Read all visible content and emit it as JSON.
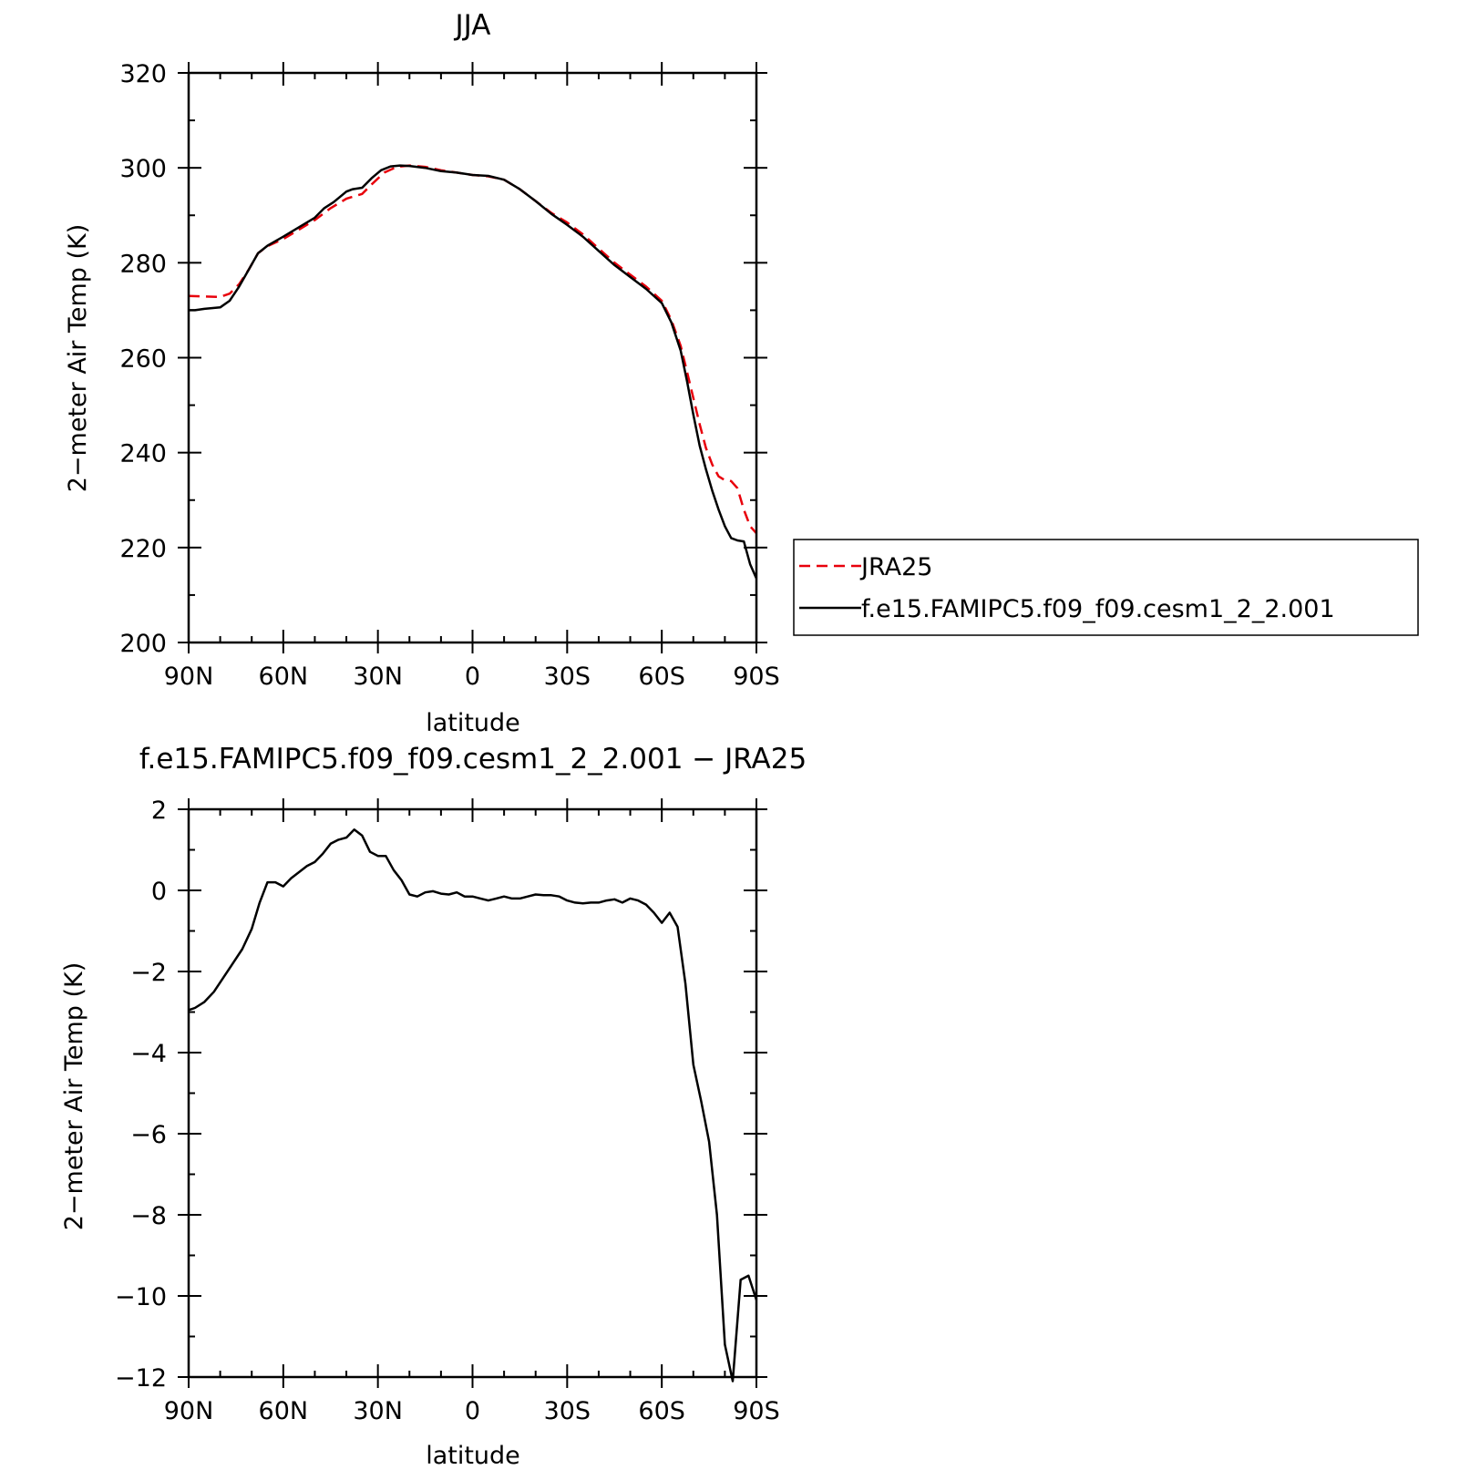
{
  "chart_data": [
    {
      "type": "line",
      "title": "JJA",
      "xlabel": "latitude",
      "ylabel": "2−meter Air Temp (K)",
      "xlim": [
        90,
        -90
      ],
      "ylim": [
        200,
        320
      ],
      "x_ticks": [
        {
          "value": 90,
          "label": "90N"
        },
        {
          "value": 60,
          "label": "60N"
        },
        {
          "value": 30,
          "label": "30N"
        },
        {
          "value": 0,
          "label": "0"
        },
        {
          "value": -30,
          "label": "30S"
        },
        {
          "value": -60,
          "label": "60S"
        },
        {
          "value": -90,
          "label": "90S"
        }
      ],
      "y_ticks": [
        {
          "value": 200,
          "label": "200"
        },
        {
          "value": 220,
          "label": "220"
        },
        {
          "value": 240,
          "label": "240"
        },
        {
          "value": 260,
          "label": "260"
        },
        {
          "value": 280,
          "label": "280"
        },
        {
          "value": 300,
          "label": "300"
        },
        {
          "value": 320,
          "label": "320"
        }
      ],
      "grid": false,
      "legend": "right",
      "series": [
        {
          "name": "JRA25",
          "color": "#e8000b",
          "dash": true,
          "x": [
            90,
            85,
            80,
            77,
            74,
            71,
            68,
            65,
            60,
            55,
            50,
            45,
            40,
            35,
            32,
            28,
            24,
            20,
            15,
            10,
            5,
            0,
            -5,
            -10,
            -15,
            -20,
            -25,
            -30,
            -35,
            -40,
            -45,
            -50,
            -55,
            -60,
            -63,
            -66,
            -68,
            -70,
            -72,
            -74,
            -76,
            -78,
            -80,
            -82,
            -84,
            -86,
            -88,
            -90
          ],
          "y": [
            273,
            272.9,
            272.8,
            273.5,
            275.5,
            278.5,
            282,
            283.5,
            285,
            287,
            289,
            291.5,
            293.5,
            294.5,
            296.5,
            299,
            300.2,
            300.5,
            300.2,
            299.5,
            299,
            298.5,
            298.2,
            297.5,
            295.5,
            293,
            290.5,
            288.5,
            286,
            283,
            280,
            277.5,
            275,
            272,
            268,
            262.5,
            257,
            251.5,
            246,
            241,
            237.5,
            235,
            234.2,
            234,
            232.5,
            228,
            224.5,
            223
          ]
        },
        {
          "name": "f.e15.FAMIPC5.f09_f09.cesm1_2_2.001",
          "color": "#000000",
          "dash": false,
          "x": [
            90,
            88,
            85,
            80,
            77,
            74,
            71,
            68,
            65,
            60,
            55,
            50,
            47,
            44,
            40,
            38,
            35,
            32,
            29,
            26,
            23,
            20,
            15,
            10,
            5,
            0,
            -5,
            -10,
            -15,
            -20,
            -25,
            -30,
            -35,
            -40,
            -45,
            -50,
            -55,
            -60,
            -63,
            -66,
            -68,
            -70,
            -72,
            -74,
            -76,
            -78,
            -80,
            -82,
            -84,
            -86,
            -88,
            -90
          ],
          "y": [
            270,
            270,
            270.3,
            270.6,
            272,
            275,
            278.5,
            282,
            283.6,
            285.5,
            287.5,
            289.5,
            291.5,
            292.8,
            295,
            295.5,
            295.8,
            297.8,
            299.5,
            300.3,
            300.5,
            300.4,
            300,
            299.3,
            299,
            298.5,
            298.3,
            297.5,
            295.5,
            293,
            290.3,
            288,
            285.5,
            282.5,
            279.5,
            277,
            274.5,
            271.5,
            267.5,
            261.5,
            255,
            248,
            241.5,
            236.5,
            232,
            228,
            224.5,
            222,
            221.5,
            221.3,
            216.5,
            213.5
          ]
        }
      ]
    },
    {
      "type": "line",
      "title": "f.e15.FAMIPC5.f09_f09.cesm1_2_2.001 − JRA25",
      "xlabel": "latitude",
      "ylabel": "2−meter Air Temp (K)",
      "xlim": [
        90,
        -90
      ],
      "ylim": [
        -12,
        2
      ],
      "x_ticks": [
        {
          "value": 90,
          "label": "90N"
        },
        {
          "value": 60,
          "label": "60N"
        },
        {
          "value": 30,
          "label": "30N"
        },
        {
          "value": 0,
          "label": "0"
        },
        {
          "value": -30,
          "label": "30S"
        },
        {
          "value": -60,
          "label": "60S"
        },
        {
          "value": -90,
          "label": "90S"
        }
      ],
      "y_ticks": [
        {
          "value": -12,
          "label": "−12"
        },
        {
          "value": -10,
          "label": "−10"
        },
        {
          "value": -8,
          "label": "−8"
        },
        {
          "value": -6,
          "label": "−6"
        },
        {
          "value": -4,
          "label": "−4"
        },
        {
          "value": -2,
          "label": "−2"
        },
        {
          "value": 0,
          "label": "0"
        },
        {
          "value": 2,
          "label": "2"
        }
      ],
      "grid": false,
      "series": [
        {
          "color": "#000000",
          "dash": false,
          "x": [
            90,
            88,
            85,
            82,
            79,
            76,
            73,
            70,
            67.5,
            65,
            62.5,
            60,
            57.5,
            55,
            52.5,
            50,
            47.5,
            45,
            42.5,
            40,
            37.5,
            35,
            32.5,
            30,
            27.5,
            25,
            22.5,
            20,
            17.5,
            15,
            12.5,
            10,
            7.5,
            5,
            2.5,
            0,
            -2.5,
            -5,
            -7.5,
            -10,
            -12.5,
            -15,
            -17.5,
            -20,
            -22.5,
            -25,
            -27.5,
            -30,
            -32.5,
            -35,
            -37.5,
            -40,
            -42.5,
            -45,
            -47.5,
            -50,
            -52.5,
            -55,
            -57.5,
            -60,
            -62.5,
            -65,
            -67.5,
            -70,
            -72.5,
            -75,
            -77.5,
            -80,
            -82.5,
            -85,
            -87.5,
            -90
          ],
          "y": [
            -2.95,
            -2.9,
            -2.75,
            -2.5,
            -2.15,
            -1.8,
            -1.45,
            -0.95,
            -0.3,
            0.2,
            0.2,
            0.1,
            0.3,
            0.45,
            0.6,
            0.7,
            0.9,
            1.15,
            1.25,
            1.3,
            1.5,
            1.35,
            0.95,
            0.85,
            0.85,
            0.5,
            0.25,
            -0.1,
            -0.15,
            -0.05,
            -0.02,
            -0.08,
            -0.1,
            -0.05,
            -0.15,
            -0.15,
            -0.2,
            -0.25,
            -0.2,
            -0.15,
            -0.2,
            -0.2,
            -0.15,
            -0.1,
            -0.12,
            -0.12,
            -0.15,
            -0.25,
            -0.3,
            -0.32,
            -0.3,
            -0.3,
            -0.25,
            -0.22,
            -0.3,
            -0.2,
            -0.25,
            -0.35,
            -0.55,
            -0.8,
            -0.55,
            -0.9,
            -2.3,
            -4.3,
            -5.2,
            -6.2,
            -8,
            -11.2,
            -12.1,
            -9.6,
            -9.5,
            -10.1
          ]
        }
      ]
    }
  ]
}
